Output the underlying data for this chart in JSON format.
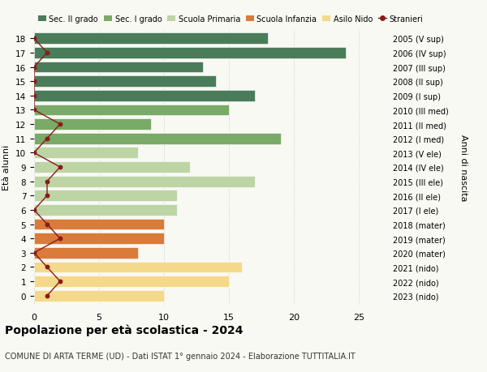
{
  "ages": [
    18,
    17,
    16,
    15,
    14,
    13,
    12,
    11,
    10,
    9,
    8,
    7,
    6,
    5,
    4,
    3,
    2,
    1,
    0
  ],
  "right_labels": [
    "2005 (V sup)",
    "2006 (IV sup)",
    "2007 (III sup)",
    "2008 (II sup)",
    "2009 (I sup)",
    "2010 (III med)",
    "2011 (II med)",
    "2012 (I med)",
    "2013 (V ele)",
    "2014 (IV ele)",
    "2015 (III ele)",
    "2016 (II ele)",
    "2017 (I ele)",
    "2018 (mater)",
    "2019 (mater)",
    "2020 (mater)",
    "2021 (nido)",
    "2022 (nido)",
    "2023 (nido)"
  ],
  "bar_values": [
    18,
    24,
    13,
    14,
    17,
    15,
    9,
    19,
    8,
    12,
    17,
    11,
    11,
    10,
    10,
    8,
    16,
    15,
    10
  ],
  "bar_colors": [
    "#4a7c59",
    "#4a7c59",
    "#4a7c59",
    "#4a7c59",
    "#4a7c59",
    "#7aaa68",
    "#7aaa68",
    "#7aaa68",
    "#bdd5a5",
    "#bdd5a5",
    "#bdd5a5",
    "#bdd5a5",
    "#bdd5a5",
    "#d97b3a",
    "#d97b3a",
    "#d97b3a",
    "#f5d98a",
    "#f5d98a",
    "#f5d98a"
  ],
  "stranieri_x": [
    0,
    1,
    0,
    0,
    0,
    0,
    2,
    1,
    0,
    2,
    1,
    1,
    0,
    1,
    2,
    0,
    1,
    2,
    1
  ],
  "legend_labels": [
    "Sec. II grado",
    "Sec. I grado",
    "Scuola Primaria",
    "Scuola Infanzia",
    "Asilo Nido",
    "Stranieri"
  ],
  "legend_colors": [
    "#4a7c59",
    "#7aaa68",
    "#bdd5a5",
    "#d97b3a",
    "#f5d98a",
    "#8b1a1a"
  ],
  "title": "Popolazione per età scolastica - 2024",
  "subtitle": "COMUNE DI ARTA TERME (UD) - Dati ISTAT 1° gennaio 2024 - Elaborazione TUTTITALIA.IT",
  "ylabel": "Età alunni",
  "right_ylabel": "Anni di nascita",
  "xlim": [
    0,
    27
  ],
  "xticks": [
    0,
    5,
    10,
    15,
    20,
    25
  ],
  "background_color": "#f9f9f4",
  "bar_height": 0.78
}
